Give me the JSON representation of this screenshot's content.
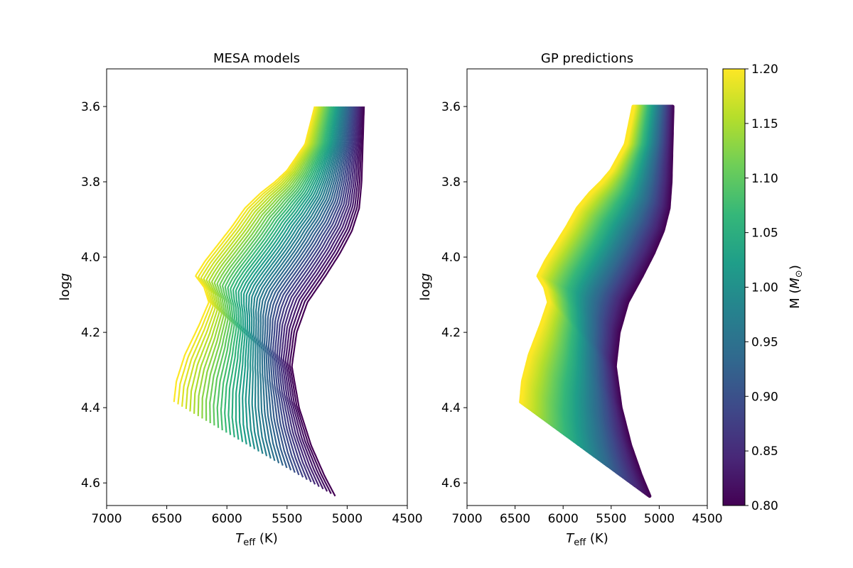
{
  "chart_data": [
    {
      "type": "line",
      "title": "MESA models",
      "xlabel": "T_eff (K)",
      "ylabel": "log g",
      "xlim": [
        7000,
        4500
      ],
      "ylim": [
        4.66,
        3.5
      ],
      "x_ticks": [
        "7000",
        "6500",
        "6000",
        "5500",
        "5000",
        "4500"
      ],
      "y_ticks": [
        "3.6",
        "3.8",
        "4.0",
        "4.2",
        "4.4",
        "4.6"
      ],
      "grid": false,
      "color_by": "mass",
      "mass_range": [
        0.8,
        1.2
      ],
      "n_tracks": 41,
      "track_shape_light": {
        "mass": 1.2,
        "teff": [
          6440,
          6420,
          6350,
          6230,
          6150,
          6190,
          6260,
          6180,
          5960,
          5850,
          5720,
          5600,
          5500,
          5350,
          5270
        ],
        "logg": [
          4.385,
          4.33,
          4.26,
          4.18,
          4.12,
          4.08,
          4.05,
          4.01,
          3.92,
          3.87,
          3.83,
          3.8,
          3.77,
          3.7,
          3.6
        ]
      },
      "track_shape_heavy": {
        "mass": 0.8,
        "teff": [
          5100,
          5190,
          5300,
          5400,
          5460,
          5420,
          5330,
          5180,
          5060,
          4960,
          4900,
          4880,
          4870,
          4860
        ],
        "logg": [
          4.635,
          4.58,
          4.5,
          4.4,
          4.29,
          4.2,
          4.12,
          4.05,
          3.99,
          3.93,
          3.87,
          3.8,
          3.7,
          3.6
        ]
      }
    },
    {
      "type": "scatter",
      "title": "GP predictions",
      "xlabel": "T_eff (K)",
      "ylabel": "log g",
      "xlim": [
        7000,
        4500
      ],
      "ylim": [
        4.66,
        3.5
      ],
      "x_ticks": [
        "7000",
        "6500",
        "6000",
        "5500",
        "5000",
        "4500"
      ],
      "y_ticks": [
        "3.6",
        "3.8",
        "4.0",
        "4.2",
        "4.4",
        "4.6"
      ],
      "grid": false,
      "color_by": "mass",
      "mass_range": [
        0.8,
        1.2
      ]
    }
  ],
  "colorbar": {
    "label": "M (M_⊙)",
    "min": 0.8,
    "max": 1.2,
    "ticks": [
      "0.80",
      "0.85",
      "0.90",
      "0.95",
      "1.00",
      "1.05",
      "1.10",
      "1.15",
      "1.20"
    ],
    "colormap": "viridis",
    "stops": [
      "#440154",
      "#482878",
      "#3e4989",
      "#31688e",
      "#26828e",
      "#1f9e89",
      "#35b779",
      "#6ece58",
      "#b5de2b",
      "#fde725"
    ]
  },
  "text": {
    "left_title": "MESA models",
    "right_title": "GP predictions",
    "teff_symbol": "T",
    "teff_subscript": "eff",
    "teff_unit": " (K)",
    "logg_log": "log",
    "logg_g": "g",
    "cb_label_prefix": "M (",
    "cb_label_m": "M",
    "cb_label_sun": "⊙",
    "cb_label_suffix": ")"
  }
}
